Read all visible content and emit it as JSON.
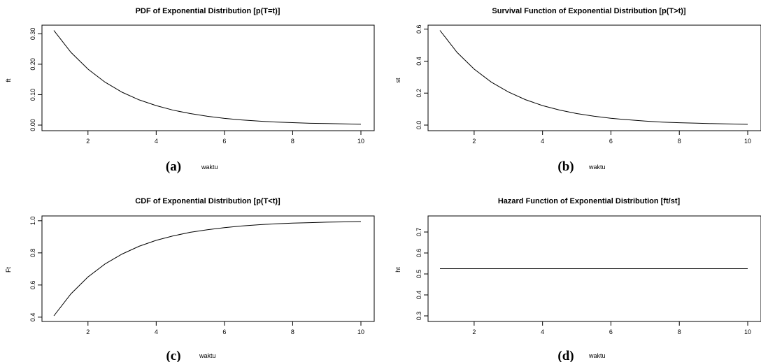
{
  "chart_data": [
    {
      "type": "line",
      "panel_label": "(a)",
      "title": "PDF of Exponential Distribution [p(T=t)]",
      "xlabel": "waktu",
      "ylabel": "ft",
      "xlim": [
        1,
        10
      ],
      "ylim": [
        0,
        0.31
      ],
      "xticks": [
        2,
        4,
        6,
        8,
        10
      ],
      "yticks": [
        0.0,
        0.1,
        0.2,
        0.3
      ],
      "ytick_labels": [
        "0.00",
        "0.10",
        "0.20",
        "0.30"
      ],
      "series": [
        {
          "x": [
            1.0,
            1.5,
            2.0,
            2.5,
            3.0,
            3.5,
            4.0,
            4.5,
            5.0,
            5.5,
            6.0,
            6.5,
            7.0,
            7.5,
            8.0,
            8.5,
            9.0,
            9.5,
            10.0
          ],
          "y": [
            0.311,
            0.239,
            0.184,
            0.141,
            0.108,
            0.083,
            0.064,
            0.049,
            0.038,
            0.029,
            0.022,
            0.017,
            0.013,
            0.01,
            0.008,
            0.006,
            0.005,
            0.004,
            0.003
          ]
        }
      ]
    },
    {
      "type": "line",
      "panel_label": "(b)",
      "title": "Survival Function of Exponential Distribution [p(T>t)]",
      "xlabel": "waktu",
      "ylabel": "st",
      "xlim": [
        1,
        10
      ],
      "ylim": [
        0,
        0.59
      ],
      "xticks": [
        2,
        4,
        6,
        8,
        10
      ],
      "yticks": [
        0.0,
        0.2,
        0.4,
        0.6
      ],
      "ytick_labels": [
        "0.0",
        "0.2",
        "0.4",
        "0.6"
      ],
      "series": [
        {
          "x": [
            1.0,
            1.5,
            2.0,
            2.5,
            3.0,
            3.5,
            4.0,
            4.5,
            5.0,
            5.5,
            6.0,
            6.5,
            7.0,
            7.5,
            8.0,
            8.5,
            9.0,
            9.5,
            10.0
          ],
          "y": [
            0.592,
            0.455,
            0.35,
            0.269,
            0.207,
            0.159,
            0.122,
            0.094,
            0.072,
            0.056,
            0.043,
            0.033,
            0.025,
            0.019,
            0.015,
            0.012,
            0.009,
            0.007,
            0.005
          ]
        }
      ]
    },
    {
      "type": "line",
      "panel_label": "(c)",
      "title": "CDF of Exponential Distribution [p(T<t)]",
      "xlabel": "waktu",
      "ylabel": "Ft",
      "xlim": [
        1,
        10
      ],
      "ylim": [
        0.408,
        0.995
      ],
      "xticks": [
        2,
        4,
        6,
        8,
        10
      ],
      "yticks": [
        0.4,
        0.6,
        0.8,
        1.0
      ],
      "ytick_labels": [
        "0.4",
        "0.6",
        "0.8",
        "1.0"
      ],
      "series": [
        {
          "x": [
            1.0,
            1.5,
            2.0,
            2.5,
            3.0,
            3.5,
            4.0,
            4.5,
            5.0,
            5.5,
            6.0,
            6.5,
            7.0,
            7.5,
            8.0,
            8.5,
            9.0,
            9.5,
            10.0
          ],
          "y": [
            0.408,
            0.545,
            0.65,
            0.731,
            0.793,
            0.841,
            0.878,
            0.906,
            0.928,
            0.944,
            0.957,
            0.967,
            0.975,
            0.981,
            0.985,
            0.988,
            0.991,
            0.993,
            0.995
          ]
        }
      ]
    },
    {
      "type": "line",
      "panel_label": "(d)",
      "title": "Hazard Function of Exponential Distribution [ft/st]",
      "xlabel": "waktu",
      "ylabel": "ht",
      "xlim": [
        1,
        10
      ],
      "ylim": [
        0.3,
        0.75
      ],
      "xticks": [
        2,
        4,
        6,
        8,
        10
      ],
      "yticks": [
        0.3,
        0.4,
        0.5,
        0.6,
        0.7
      ],
      "ytick_labels": [
        "0.3",
        "0.4",
        "0.5",
        "0.6",
        "0.7"
      ],
      "series": [
        {
          "x": [
            1.0,
            10.0
          ],
          "y": [
            0.525,
            0.525
          ]
        }
      ]
    }
  ]
}
